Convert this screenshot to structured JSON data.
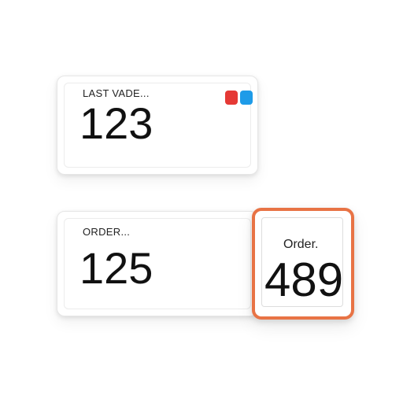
{
  "cards": [
    {
      "label": "LAST VADE...",
      "value": "123",
      "indicators": [
        {
          "color": "#e53935"
        },
        {
          "color": "#1e9be8"
        }
      ]
    },
    {
      "label": "ORDER...",
      "value": "125"
    },
    {
      "label": "Order.",
      "value": "489",
      "accent_color": "#e87345"
    }
  ]
}
